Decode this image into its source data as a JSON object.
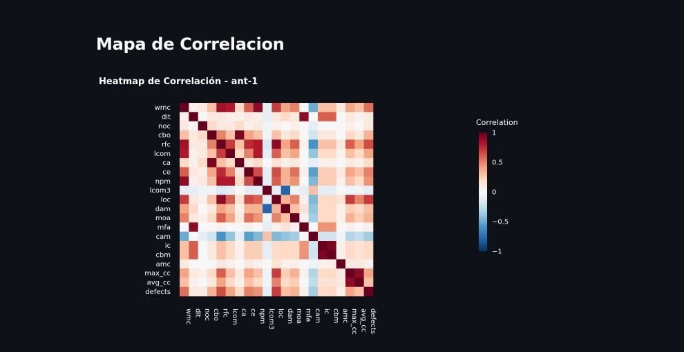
{
  "page": {
    "title": "Mapa de Correlacion"
  },
  "chart_data": {
    "type": "heatmap",
    "title": "Heatmap de Correlación - ant-1",
    "labels": [
      "wmc",
      "dit",
      "noc",
      "cbo",
      "rfc",
      "lcom",
      "ca",
      "ce",
      "npm",
      "lcom3",
      "loc",
      "dam",
      "moa",
      "mfa",
      "cam",
      "ic",
      "cbm",
      "amc",
      "max_cc",
      "avg_cc",
      "defects"
    ],
    "colorbar": {
      "title": "Correlation",
      "ticks": [
        "1",
        "0.5",
        "0",
        "−0.5",
        "−1"
      ],
      "range": [
        -1,
        1
      ]
    },
    "colorscale": "RdBu",
    "matrix": [
      [
        1,
        0.05,
        0.1,
        0.3,
        0.85,
        0.8,
        0.2,
        0.6,
        0.9,
        -0.1,
        0.7,
        0.4,
        0.5,
        0,
        -0.5,
        0.3,
        0.3,
        0.1,
        0.4,
        0.3,
        0.55
      ],
      [
        0.05,
        1,
        0,
        0.1,
        0.1,
        0.05,
        0.05,
        0.1,
        0.05,
        -0.1,
        0.1,
        0.2,
        0.1,
        0.9,
        0,
        0.6,
        0.6,
        0,
        0.1,
        0.05,
        0.1
      ],
      [
        0.1,
        0,
        1,
        0.2,
        0.1,
        0.1,
        0.2,
        0.05,
        0.1,
        -0.05,
        0.05,
        0,
        0.05,
        0,
        -0.1,
        0,
        0,
        0,
        0.05,
        0,
        0.1
      ],
      [
        0.3,
        0.1,
        0.2,
        1,
        0.5,
        0.3,
        0.95,
        0.4,
        0.3,
        -0.05,
        0.3,
        0.1,
        0.2,
        0,
        -0.2,
        0.1,
        0.1,
        0,
        0.2,
        0.1,
        0.35
      ],
      [
        0.85,
        0.1,
        0.1,
        0.5,
        1,
        0.7,
        0.3,
        0.75,
        0.8,
        -0.15,
        0.9,
        0.4,
        0.6,
        0.05,
        -0.6,
        0.3,
        0.3,
        0.1,
        0.6,
        0.4,
        0.65
      ],
      [
        0.8,
        0.05,
        0.1,
        0.3,
        0.7,
        1,
        0.2,
        0.5,
        0.8,
        -0.1,
        0.6,
        0.3,
        0.4,
        0,
        -0.4,
        0.2,
        0.2,
        0.05,
        0.3,
        0.2,
        0.4
      ],
      [
        0.2,
        0.05,
        0.2,
        0.95,
        0.3,
        0.2,
        1,
        0.1,
        0.2,
        0,
        0.15,
        0.05,
        0.1,
        0,
        -0.1,
        0.05,
        0.05,
        0,
        0.1,
        0.05,
        0.2
      ],
      [
        0.6,
        0.1,
        0.05,
        0.4,
        0.75,
        0.5,
        0.1,
        1,
        0.65,
        -0.1,
        0.65,
        0.35,
        0.55,
        0.05,
        -0.55,
        0.25,
        0.25,
        0.1,
        0.4,
        0.3,
        0.5
      ],
      [
        0.9,
        0.05,
        0.1,
        0.3,
        0.8,
        0.8,
        0.2,
        0.65,
        1,
        -0.1,
        0.6,
        0.35,
        0.45,
        0,
        -0.45,
        0.25,
        0.25,
        0.05,
        0.3,
        0.2,
        0.45
      ],
      [
        -0.1,
        -0.1,
        -0.05,
        -0.05,
        -0.15,
        -0.1,
        0,
        -0.1,
        -0.1,
        1,
        -0.1,
        -0.8,
        -0.05,
        -0.1,
        0.3,
        -0.1,
        -0.1,
        0,
        -0.05,
        -0.05,
        -0.1
      ],
      [
        0.7,
        0.1,
        0.05,
        0.3,
        0.9,
        0.6,
        0.15,
        0.65,
        0.6,
        -0.1,
        1,
        0.35,
        0.5,
        0.05,
        -0.45,
        0.2,
        0.2,
        0.15,
        0.7,
        0.5,
        0.7
      ],
      [
        0.4,
        0.2,
        0,
        0.1,
        0.4,
        0.3,
        0.05,
        0.35,
        0.35,
        -0.8,
        0.35,
        1,
        0.3,
        0.15,
        -0.4,
        0.2,
        0.2,
        0.05,
        0.25,
        0.2,
        0.3
      ],
      [
        0.5,
        0.1,
        0.05,
        0.2,
        0.6,
        0.4,
        0.1,
        0.55,
        0.45,
        -0.05,
        0.5,
        0.3,
        1,
        0.05,
        -0.35,
        0.2,
        0.2,
        0.05,
        0.35,
        0.25,
        0.35
      ],
      [
        0,
        0.9,
        0,
        0,
        0.05,
        0,
        0,
        0.05,
        0,
        -0.1,
        0.05,
        0.15,
        0.05,
        1,
        0,
        0.45,
        0.45,
        0,
        0.05,
        0,
        0.05
      ],
      [
        -0.5,
        0,
        -0.1,
        -0.2,
        -0.6,
        -0.4,
        -0.1,
        -0.55,
        -0.45,
        0.3,
        -0.45,
        -0.4,
        -0.35,
        0,
        1,
        -0.2,
        -0.2,
        -0.05,
        -0.3,
        -0.25,
        -0.35
      ],
      [
        0.3,
        0.6,
        0,
        0.1,
        0.3,
        0.2,
        0.05,
        0.25,
        0.25,
        -0.1,
        0.2,
        0.2,
        0.2,
        0.45,
        -0.2,
        1,
        0.95,
        0.05,
        0.2,
        0.15,
        0.2
      ],
      [
        0.3,
        0.6,
        0,
        0.1,
        0.3,
        0.2,
        0.05,
        0.25,
        0.25,
        -0.1,
        0.2,
        0.2,
        0.2,
        0.45,
        -0.2,
        0.95,
        1,
        0.05,
        0.2,
        0.15,
        0.2
      ],
      [
        0.1,
        0,
        0,
        0,
        0.1,
        0.05,
        0,
        0.1,
        0.05,
        0,
        0.15,
        0.05,
        0.05,
        0,
        -0.05,
        0.05,
        0.05,
        1,
        0.1,
        0.1,
        0.05
      ],
      [
        0.4,
        0.1,
        0.05,
        0.2,
        0.6,
        0.3,
        0.1,
        0.4,
        0.3,
        -0.05,
        0.7,
        0.25,
        0.35,
        0.05,
        -0.3,
        0.2,
        0.2,
        0.1,
        1,
        0.9,
        0.4
      ],
      [
        0.3,
        0.05,
        0,
        0.1,
        0.4,
        0.2,
        0.05,
        0.3,
        0.2,
        -0.05,
        0.5,
        0.2,
        0.25,
        0,
        -0.25,
        0.15,
        0.15,
        0.1,
        0.9,
        1,
        0.3
      ],
      [
        0.55,
        0.1,
        0.1,
        0.35,
        0.65,
        0.4,
        0.2,
        0.5,
        0.45,
        -0.1,
        0.7,
        0.3,
        0.35,
        0.05,
        -0.35,
        0.2,
        0.2,
        0.05,
        0.4,
        0.3,
        1
      ]
    ]
  }
}
